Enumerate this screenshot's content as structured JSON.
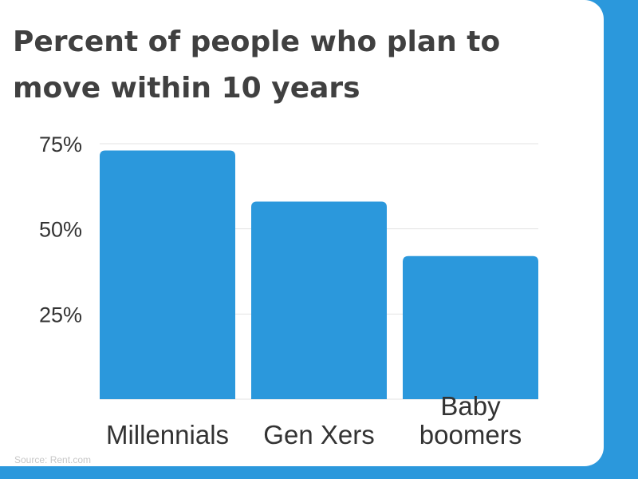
{
  "chart_data": {
    "type": "bar",
    "title": "Percent of people who plan to move within 10 years",
    "categories": [
      "Millennials",
      "Gen Xers",
      "Baby boomers"
    ],
    "category_lines": [
      [
        "Millennials"
      ],
      [
        "Gen Xers"
      ],
      [
        "Baby",
        "boomers"
      ]
    ],
    "values": [
      73,
      58,
      42
    ],
    "value_unit": "%",
    "yticks": [
      "25%",
      "50%",
      "75%"
    ],
    "ytick_values": [
      25,
      50,
      75
    ],
    "ylim": [
      0,
      75
    ],
    "xlabel": "",
    "ylabel": "",
    "grid": true,
    "legend": "none",
    "bar_color": "#2b98dc",
    "grid_color": "#e3e3e3"
  },
  "source": "Source: Rent.com",
  "colors": {
    "frame": "#2b98dc",
    "title": "#404040",
    "axis_text": "#333333",
    "source_text": "#c7c7c7"
  }
}
